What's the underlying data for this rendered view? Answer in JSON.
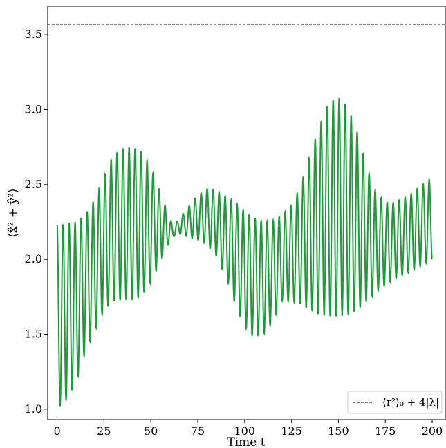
{
  "chart_data": {
    "type": "line",
    "xlabel": "Time t",
    "ylabel": "⟨x̂² + ŷ²⟩",
    "xlim": [
      -5,
      207
    ],
    "ylim": [
      0.93,
      3.69
    ],
    "xticks": [
      "0",
      "25",
      "50",
      "75",
      "100",
      "125",
      "150",
      "175",
      "200"
    ],
    "yticks": [
      "1.0",
      "1.5",
      "2.0",
      "2.5",
      "3.0",
      "3.5"
    ],
    "grid": false,
    "legend_position": "bottom-right",
    "legend": [
      "⟨r²⟩₀ + 4|λ|"
    ],
    "series": [
      {
        "name": "⟨x̂² + ŷ²⟩",
        "style": "solid",
        "color": "#1f9a3a",
        "oscillation_period": 3.2,
        "envelope_t": [
          0,
          2,
          5,
          10,
          15,
          20,
          25,
          30,
          35,
          40,
          45,
          50,
          55,
          60,
          62,
          65,
          70,
          75,
          80,
          85,
          90,
          95,
          100,
          105,
          110,
          115,
          120,
          125,
          130,
          135,
          140,
          145,
          150,
          155,
          160,
          165,
          170,
          175,
          180,
          185,
          190,
          195,
          200
        ],
        "envelope_max": [
          2.23,
          2.23,
          2.24,
          2.25,
          2.3,
          2.4,
          2.55,
          2.7,
          2.74,
          2.75,
          2.72,
          2.62,
          2.45,
          2.28,
          2.22,
          2.27,
          2.35,
          2.43,
          2.47,
          2.46,
          2.42,
          2.38,
          2.32,
          2.28,
          2.25,
          2.26,
          2.3,
          2.36,
          2.5,
          2.7,
          2.9,
          3.05,
          3.08,
          3.02,
          2.85,
          2.62,
          2.45,
          2.38,
          2.38,
          2.41,
          2.45,
          2.5,
          2.55
        ],
        "envelope_min": [
          1.02,
          1.02,
          1.06,
          1.17,
          1.38,
          1.52,
          1.66,
          1.72,
          1.73,
          1.73,
          1.75,
          1.85,
          1.98,
          2.12,
          2.15,
          2.17,
          2.15,
          2.13,
          2.1,
          2.02,
          1.88,
          1.7,
          1.55,
          1.48,
          1.5,
          1.58,
          1.72,
          1.72,
          1.7,
          1.66,
          1.63,
          1.62,
          1.62,
          1.63,
          1.66,
          1.72,
          1.78,
          1.83,
          1.87,
          1.9,
          1.93,
          1.96,
          2.0
        ],
        "end_value": 2.36
      },
      {
        "name": "⟨r²⟩₀ + 4|λ|",
        "style": "dashed",
        "color": "#000000",
        "y": 3.57
      }
    ]
  }
}
